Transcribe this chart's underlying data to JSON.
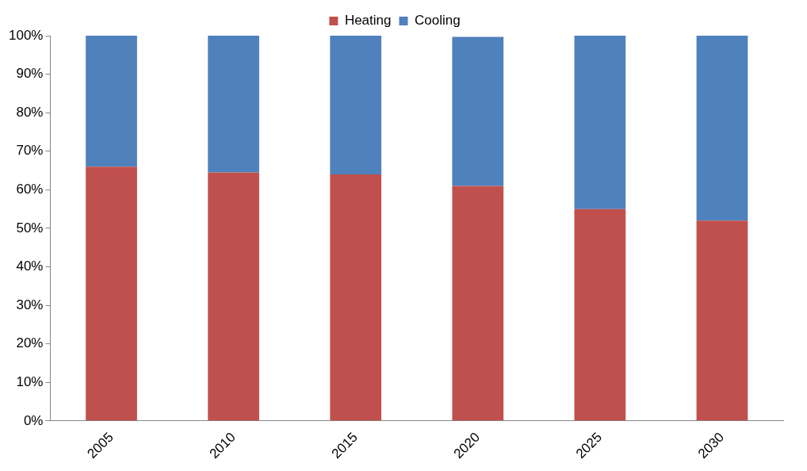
{
  "chart_data": {
    "type": "bar",
    "stacked": true,
    "categories": [
      "2005",
      "2010",
      "2015",
      "2020",
      "2025",
      "2030"
    ],
    "series": [
      {
        "name": "Heating",
        "color": "#c0504d",
        "values": [
          66,
          64.5,
          64,
          61,
          55,
          52
        ]
      },
      {
        "name": "Cooling",
        "color": "#4f81bd",
        "values": [
          34,
          35.5,
          36,
          38.7,
          45,
          48
        ]
      }
    ],
    "ylim": [
      0,
      100
    ],
    "yticks": [
      {
        "value": 0,
        "label": "0%"
      },
      {
        "value": 10,
        "label": "10%"
      },
      {
        "value": 20,
        "label": "20%"
      },
      {
        "value": 30,
        "label": "30%"
      },
      {
        "value": 40,
        "label": "40%"
      },
      {
        "value": 50,
        "label": "50%"
      },
      {
        "value": 60,
        "label": "60%"
      },
      {
        "value": 70,
        "label": "70%"
      },
      {
        "value": 80,
        "label": "80%"
      },
      {
        "value": 90,
        "label": "90%"
      },
      {
        "value": 100,
        "label": "100%"
      }
    ],
    "grid": false,
    "legend": "top"
  }
}
